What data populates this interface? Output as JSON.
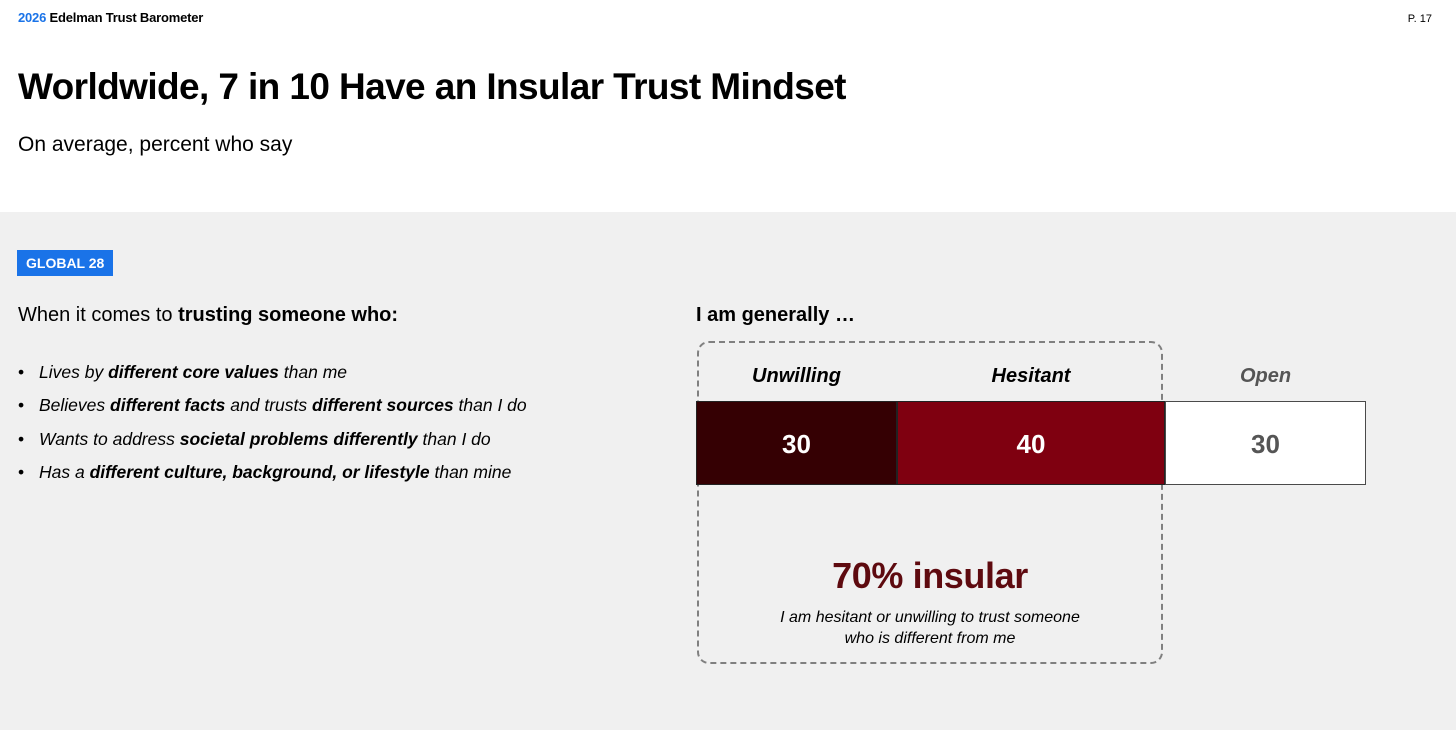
{
  "header": {
    "brand_year": "2026",
    "brand_name": "Edelman Trust Barometer",
    "page_number": "P. 17",
    "title": "Worldwide, 7 in 10 Have an Insular Trust Mindset",
    "subtitle": "On average, percent who say"
  },
  "badge": "GLOBAL 28",
  "intro": {
    "prefix": "When it comes to ",
    "bold": "trusting someone who:"
  },
  "bullets": [
    {
      "a": "Lives by ",
      "b": "different core values",
      "c": " than me",
      "d": "",
      "e": ""
    },
    {
      "a": "Believes ",
      "b": "different facts",
      "c": " and trusts ",
      "d": "different sources",
      "e": " than I do"
    },
    {
      "a": "Wants to address ",
      "b": "societal problems differently",
      "c": " than I do",
      "d": "",
      "e": ""
    },
    {
      "a": "Has a ",
      "b": "different culture, background, or lifestyle",
      "c": " than mine",
      "d": "",
      "e": ""
    }
  ],
  "chart_data": {
    "type": "bar",
    "orientation": "horizontal-stacked",
    "title": "I am generally …",
    "categories": [
      "Unwilling",
      "Hesitant",
      "Open"
    ],
    "values": [
      30,
      40,
      30
    ],
    "colors": [
      "#350003",
      "#7f0010",
      "#ffffff"
    ],
    "label_colors": [
      "#ffffff",
      "#ffffff",
      "#555555"
    ],
    "category_label_colors": [
      "#000000",
      "#000000",
      "#555555"
    ],
    "summary": {
      "value": "70% insular",
      "note_line1": "I am hesitant or unwilling to trust someone",
      "note_line2": "who is different from me"
    }
  }
}
